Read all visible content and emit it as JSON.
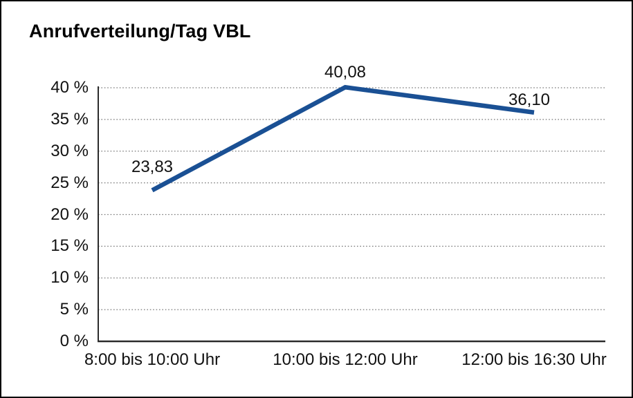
{
  "chart_data": {
    "type": "line",
    "title": "Anrufverteilung/Tag VBL",
    "categories": [
      "8:00 bis 10:00 Uhr",
      "10:00 bis 12:00 Uhr",
      "12:00 bis 16:30 Uhr"
    ],
    "values": [
      23.83,
      40.08,
      36.1
    ],
    "point_labels": [
      "23,83",
      "40,08",
      "36,10"
    ],
    "ylim": [
      0,
      40
    ],
    "y_tick_step": 5,
    "y_tick_labels": [
      "0 %",
      "5 %",
      "10 %",
      "15 %",
      "20 %",
      "25 %",
      "30 %",
      "35 %",
      "40 %"
    ],
    "xlabel": "",
    "ylabel": "",
    "legend_position": "none",
    "grid": "horizontal-dotted",
    "line_color": "#1a5094",
    "grid_color": "#777777",
    "axis_color": "#2b2b2b",
    "text_color": "#111111",
    "background": "#ffffff",
    "border_color": "#000000"
  }
}
